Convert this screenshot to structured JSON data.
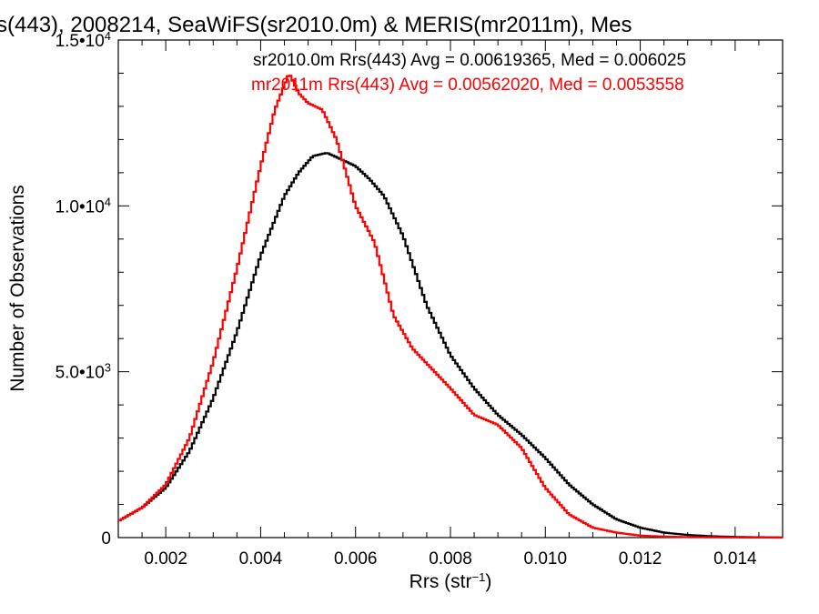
{
  "chart_data": {
    "type": "line",
    "title": "s(443), 2008214, SeaWiFS(sr2010.0m) & MERIS(mr2011m), Mes",
    "xlabel": {
      "base": "Rrs (str",
      "sup": "−1",
      "tail": ")"
    },
    "ylabel": "Number of Observations",
    "xlim": [
      0.001,
      0.015
    ],
    "ylim": [
      0,
      15000
    ],
    "x_ticks": [
      {
        "value": 0.002,
        "label": "0.002"
      },
      {
        "value": 0.004,
        "label": "0.004"
      },
      {
        "value": 0.006,
        "label": "0.006"
      },
      {
        "value": 0.008,
        "label": "0.008"
      },
      {
        "value": 0.01,
        "label": "0.010"
      },
      {
        "value": 0.012,
        "label": "0.012"
      },
      {
        "value": 0.014,
        "label": "0.014"
      }
    ],
    "y_ticks": [
      {
        "value": 0,
        "label": "0",
        "exp": ""
      },
      {
        "value": 5000,
        "label": "5.0•10",
        "exp": "3"
      },
      {
        "value": 10000,
        "label": "1.0•10",
        "exp": "4"
      },
      {
        "value": 15000,
        "label": "1.5•10",
        "exp": "4"
      }
    ],
    "legend": [
      {
        "text": "sr2010.0m Rrs(443) Avg = 0.00619365, Med = 0.006025",
        "color": "#000000"
      },
      {
        "text": "mr2011m Rrs(443) Avg = 0.00562020, Med = 0.0053558",
        "color": "#ff0000"
      }
    ],
    "series": [
      {
        "color": "#000000",
        "x": [
          0.001,
          0.0015,
          0.002,
          0.0025,
          0.003,
          0.0035,
          0.004,
          0.0045,
          0.0048,
          0.0051,
          0.0054,
          0.0057,
          0.006,
          0.0063,
          0.0066,
          0.007,
          0.0075,
          0.008,
          0.0085,
          0.009,
          0.0095,
          0.01,
          0.0105,
          0.011,
          0.0115,
          0.012,
          0.0125,
          0.013,
          0.0135,
          0.014,
          0.0145,
          0.015
        ],
        "y": [
          500,
          900,
          1500,
          2600,
          4200,
          6200,
          8500,
          10300,
          11000,
          11500,
          11600,
          11400,
          11200,
          10800,
          10300,
          9100,
          7000,
          5500,
          4500,
          3700,
          3100,
          2400,
          1600,
          1000,
          550,
          300,
          150,
          80,
          40,
          20,
          10,
          5
        ]
      },
      {
        "color": "#ff0000",
        "x": [
          0.001,
          0.0015,
          0.002,
          0.0025,
          0.003,
          0.0035,
          0.004,
          0.0043,
          0.0046,
          0.0048,
          0.005,
          0.0053,
          0.0056,
          0.0058,
          0.006,
          0.0064,
          0.0068,
          0.0072,
          0.0076,
          0.008,
          0.0085,
          0.009,
          0.0095,
          0.01,
          0.0105,
          0.011,
          0.0115,
          0.012,
          0.0125,
          0.013,
          0.014,
          0.015
        ],
        "y": [
          500,
          900,
          1600,
          3000,
          5300,
          8100,
          11200,
          12900,
          14000,
          13400,
          13100,
          12900,
          12000,
          11000,
          10000,
          8900,
          6700,
          5700,
          5100,
          4500,
          3700,
          3400,
          2700,
          1500,
          700,
          300,
          150,
          60,
          30,
          15,
          5,
          0
        ]
      }
    ]
  }
}
